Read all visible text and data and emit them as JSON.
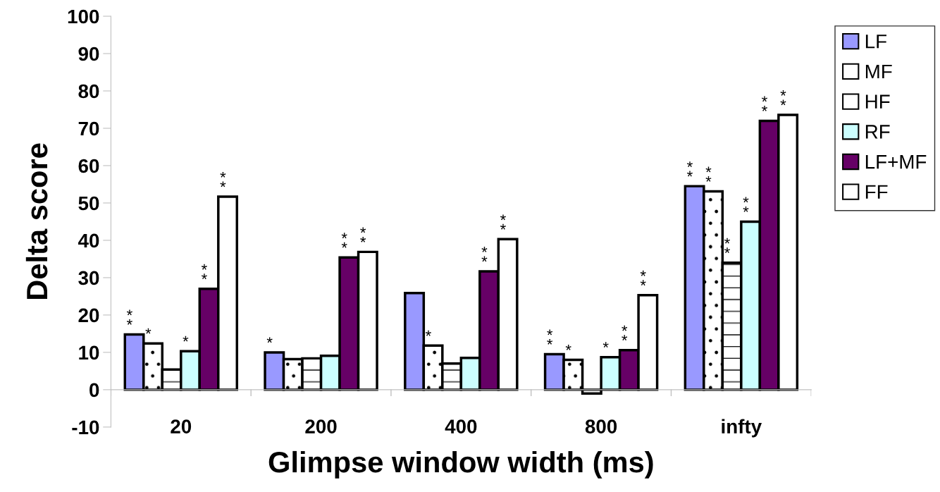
{
  "chart_data": {
    "type": "bar",
    "xlabel": "Glimpse window width (ms)",
    "ylabel": "Delta score",
    "categories": [
      "20",
      "200",
      "400",
      "800",
      "infty"
    ],
    "series": [
      {
        "name": "LF",
        "color": "#9999ff",
        "values": [
          14.8,
          10,
          25.9,
          9.5,
          54.5
        ],
        "value_labels": [
          "*\n*",
          "*",
          null,
          "*\n*",
          "*\n*"
        ]
      },
      {
        "name": "MF",
        "color": "#ffffff",
        "values": [
          12.4,
          8.2,
          11.8,
          8,
          53.1
        ],
        "value_labels": [
          "*",
          null,
          "*",
          "*",
          "*\n*"
        ]
      },
      {
        "name": "HF",
        "color": "#ffffff",
        "values": [
          5.4,
          8.4,
          7,
          -1,
          34
        ],
        "value_labels": [
          null,
          null,
          null,
          null,
          "*\n*"
        ]
      },
      {
        "name": "RF",
        "color": "#ccffff",
        "values": [
          10.3,
          9.1,
          8.5,
          8.7,
          45
        ],
        "value_labels": [
          "*",
          null,
          null,
          "*",
          "*\n*"
        ]
      },
      {
        "name": "LF+MF",
        "color": "#660066",
        "values": [
          27,
          35.4,
          31.7,
          10.6,
          72
        ],
        "value_labels": [
          "*\n*",
          "*\n*",
          "*\n*",
          "*\n*",
          "*\n*"
        ]
      },
      {
        "name": "FF",
        "color": "#ffffff",
        "values": [
          51.7,
          36.9,
          40.3,
          25.3,
          73.6
        ],
        "value_labels": [
          "*\n*",
          "*\n*",
          "*\n*",
          "*\n*",
          "*\n*"
        ]
      }
    ],
    "ylim": [
      -10,
      100
    ],
    "yticks": [
      -10,
      0,
      10,
      20,
      30,
      40,
      50,
      60,
      70,
      80,
      90,
      100
    ],
    "grid": false,
    "legend": "top right"
  }
}
